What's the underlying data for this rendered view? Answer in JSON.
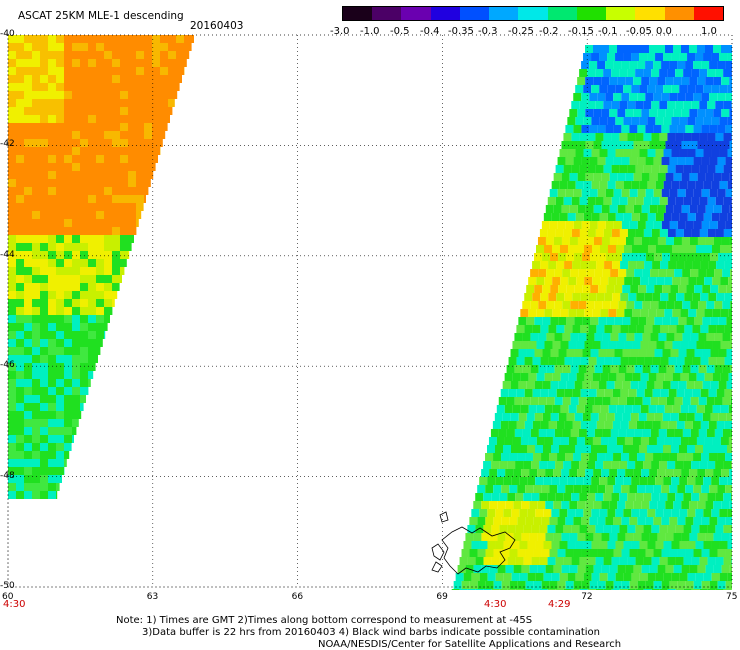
{
  "title": {
    "product": "ASCAT 25KM MLE-1 descending",
    "date": "20160403"
  },
  "colorbar": {
    "labels": [
      "-3.0",
      "-1.0",
      "-0.5",
      "-0.4",
      "-0.35",
      "-0.3",
      "-0.25",
      "-0.2",
      "-0.15",
      "-0.1",
      "-0.05",
      "0.0",
      "1.0"
    ],
    "colors": [
      "#1a001a",
      "#4b0066",
      "#6a00b0",
      "#2000e0",
      "#0050ff",
      "#00a8ff",
      "#00e8e8",
      "#00e870",
      "#20e000",
      "#c8ff00",
      "#ffe000",
      "#ff9000",
      "#ff1000"
    ]
  },
  "axes": {
    "lat_labels": [
      "-40",
      "-42",
      "-44",
      "-46",
      "-48",
      "-50"
    ],
    "lon_labels": [
      "60",
      "63",
      "66",
      "69",
      "72",
      "75"
    ],
    "lat_range": [
      -50,
      -40
    ],
    "lon_range": [
      60,
      75
    ]
  },
  "swath_times": [
    "4:30",
    "4:30",
    "4:29"
  ],
  "notes": {
    "line1": "Note: 1) Times are GMT 2)Times along bottom correspond to measurement at -45S",
    "line2": "3)Data buffer is 22 hrs from 20160403 4) Black wind barbs indicate possible contamination",
    "line3": "NOAA/NESDIS/Center for Satellite Applications and Research"
  },
  "colors": {
    "orange": "#ff8c00",
    "yellow": "#f0f000",
    "green": "#20e020",
    "cyan": "#00f0c0",
    "blue": "#0064ff",
    "coast": "#000000"
  }
}
